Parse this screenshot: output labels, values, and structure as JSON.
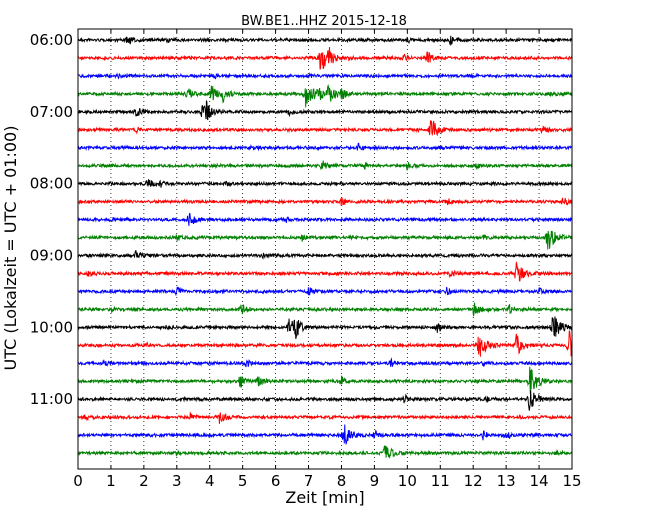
{
  "chart_data": {
    "type": "line",
    "title": "BW.BE1..HHZ 2015-12-18",
    "xlabel": "Zeit  [min]",
    "ylabel": "UTC (Lokalzeit = UTC + 01:00)",
    "xlim": [
      0,
      15
    ],
    "x_ticks": [
      "0",
      "1",
      "2",
      "3",
      "4",
      "5",
      "6",
      "7",
      "8",
      "9",
      "10",
      "11",
      "12",
      "13",
      "14",
      "15"
    ],
    "y_ticks": [
      "06:00",
      "07:00",
      "08:00",
      "09:00",
      "10:00",
      "11:00"
    ],
    "grid": true,
    "trace_interval_min": 15,
    "trace_colors": [
      "#000000",
      "#ff0000",
      "#0000ff",
      "#008000"
    ],
    "traces": [
      {
        "start": "06:00",
        "events": [
          [
            1.5,
            0.35
          ],
          [
            11.3,
            0.3
          ],
          [
            10.0,
            0.15
          ],
          [
            2.7,
            0.12
          ]
        ]
      },
      {
        "start": "06:15",
        "events": [
          [
            7.35,
            1.0
          ],
          [
            7.6,
            0.5
          ],
          [
            10.6,
            0.45
          ],
          [
            9.9,
            0.2
          ]
        ]
      },
      {
        "start": "06:30",
        "events": [
          [
            4.1,
            0.2
          ],
          [
            1.2,
            0.12
          ],
          [
            7.0,
            0.12
          ]
        ]
      },
      {
        "start": "06:45",
        "events": [
          [
            3.3,
            0.5
          ],
          [
            4.05,
            0.55
          ],
          [
            4.4,
            0.55
          ],
          [
            6.9,
            0.9
          ],
          [
            7.3,
            0.45
          ],
          [
            7.6,
            0.8
          ],
          [
            8.0,
            0.3
          ],
          [
            14.3,
            0.2
          ]
        ]
      },
      {
        "start": "07:00",
        "events": [
          [
            1.75,
            0.35
          ],
          [
            3.75,
            0.5
          ],
          [
            3.9,
            0.5
          ],
          [
            6.4,
            0.2
          ]
        ]
      },
      {
        "start": "07:15",
        "events": [
          [
            10.7,
            0.85
          ],
          [
            14.1,
            0.3
          ],
          [
            1.75,
            0.15
          ]
        ]
      },
      {
        "start": "07:30",
        "events": [
          [
            5.2,
            0.15
          ],
          [
            8.5,
            0.25
          ],
          [
            11.0,
            0.12
          ]
        ]
      },
      {
        "start": "07:45",
        "events": [
          [
            7.4,
            0.4
          ],
          [
            10.0,
            0.25
          ],
          [
            12.1,
            0.2
          ],
          [
            8.7,
            0.15
          ]
        ]
      },
      {
        "start": "08:00",
        "events": [
          [
            2.1,
            0.35
          ],
          [
            2.5,
            0.2
          ],
          [
            4.5,
            0.15
          ]
        ]
      },
      {
        "start": "08:15",
        "events": [
          [
            8.0,
            0.3
          ],
          [
            14.7,
            0.35
          ],
          [
            11.2,
            0.2
          ]
        ]
      },
      {
        "start": "08:30",
        "events": [
          [
            3.35,
            0.55
          ],
          [
            1.0,
            0.15
          ],
          [
            6.3,
            0.15
          ]
        ]
      },
      {
        "start": "08:45",
        "events": [
          [
            14.25,
            0.95
          ],
          [
            3.0,
            0.25
          ],
          [
            6.8,
            0.2
          ],
          [
            12.3,
            0.2
          ]
        ]
      },
      {
        "start": "09:00",
        "events": [
          [
            1.75,
            0.3
          ],
          [
            5.6,
            0.15
          ]
        ]
      },
      {
        "start": "09:15",
        "events": [
          [
            13.3,
            0.9
          ],
          [
            11.3,
            0.25
          ],
          [
            0.3,
            0.15
          ]
        ]
      },
      {
        "start": "09:30",
        "events": [
          [
            3.0,
            0.3
          ],
          [
            7.0,
            0.3
          ],
          [
            11.2,
            0.25
          ],
          [
            14.0,
            0.2
          ]
        ]
      },
      {
        "start": "09:45",
        "events": [
          [
            4.95,
            0.45
          ],
          [
            12.0,
            0.5
          ],
          [
            13.1,
            0.3
          ],
          [
            1.0,
            0.15
          ]
        ]
      },
      {
        "start": "10:00",
        "events": [
          [
            6.4,
            0.7
          ],
          [
            6.6,
            0.55
          ],
          [
            10.9,
            0.3
          ],
          [
            14.4,
            1.0
          ],
          [
            2.7,
            0.15
          ]
        ]
      },
      {
        "start": "10:15",
        "events": [
          [
            12.15,
            1.0
          ],
          [
            13.3,
            0.8
          ],
          [
            14.9,
            1.0
          ],
          [
            2.1,
            0.15
          ]
        ]
      },
      {
        "start": "10:30",
        "events": [
          [
            0.8,
            0.2
          ],
          [
            5.1,
            0.3
          ],
          [
            9.5,
            0.25
          ],
          [
            12.3,
            0.15
          ]
        ]
      },
      {
        "start": "10:45",
        "events": [
          [
            4.9,
            0.45
          ],
          [
            5.45,
            0.45
          ],
          [
            8.0,
            0.3
          ],
          [
            13.7,
            1.0
          ]
        ]
      },
      {
        "start": "11:00",
        "events": [
          [
            9.9,
            0.3
          ],
          [
            13.7,
            0.9
          ],
          [
            12.4,
            0.2
          ]
        ]
      },
      {
        "start": "11:15",
        "events": [
          [
            4.3,
            0.5
          ],
          [
            3.4,
            0.2
          ],
          [
            0.2,
            0.15
          ]
        ]
      },
      {
        "start": "11:30",
        "events": [
          [
            8.05,
            0.85
          ],
          [
            9.0,
            0.3
          ],
          [
            12.3,
            0.3
          ],
          [
            13.0,
            0.35
          ]
        ]
      },
      {
        "start": "11:45",
        "events": [
          [
            9.3,
            0.7
          ],
          [
            14.5,
            0.15
          ],
          [
            3.0,
            0.12
          ]
        ]
      }
    ]
  }
}
